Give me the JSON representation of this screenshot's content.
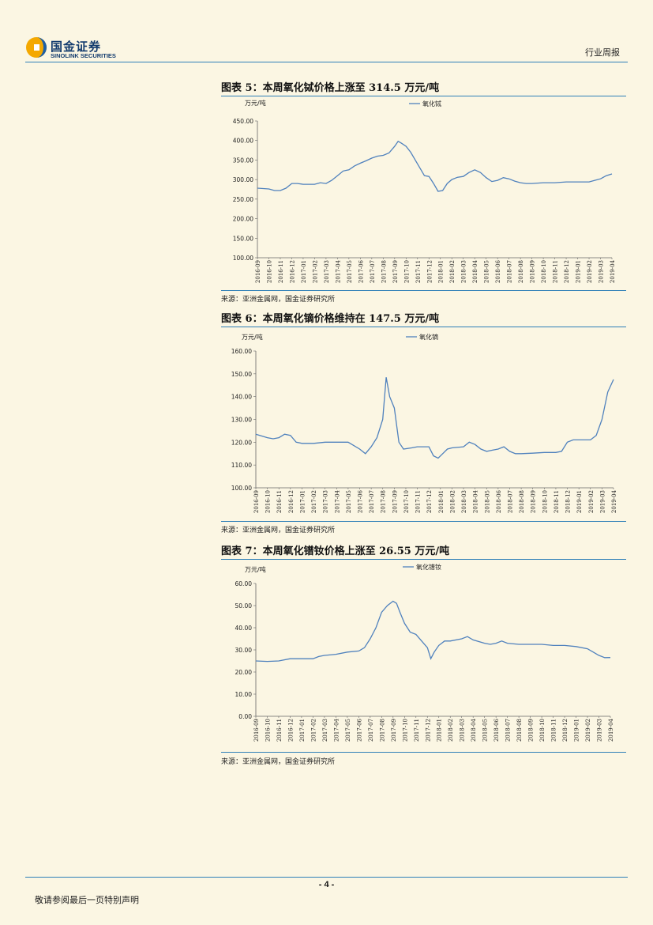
{
  "header": {
    "logo_cn": "国金证券",
    "logo_en": "SINOLINK SECURITIES",
    "report_type": "行业周报"
  },
  "figures": [
    {
      "title": "图表 5：本周氧化铽价格上涨至 314.5 万元/吨",
      "source": "来源：亚洲金属网，国金证券研究所"
    },
    {
      "title": "图表 6：本周氧化镝价格维持在 147.5 万元/吨",
      "source": "来源：亚洲金属网，国金证券研究所"
    },
    {
      "title": "图表 7：本周氧化镨钕价格上涨至 26.55 万元/吨",
      "source": "来源：亚洲金属网，国金证券研究所"
    }
  ],
  "chart_data": [
    {
      "type": "line",
      "unit_label": "万元/吨",
      "ylim": [
        100,
        450
      ],
      "yticks": [
        "100.00",
        "150.00",
        "200.00",
        "250.00",
        "300.00",
        "350.00",
        "400.00",
        "450.00"
      ],
      "categories": [
        "2016-09",
        "2016-10",
        "2016-11",
        "2016-12",
        "2017-01",
        "2017-02",
        "2017-03",
        "2017-04",
        "2017-05",
        "2017-06",
        "2017-07",
        "2017-08",
        "2017-09",
        "2017-10",
        "2017-11",
        "2017-12",
        "2018-01",
        "2018-02",
        "2018-03",
        "2018-04",
        "2018-05",
        "2018-06",
        "2018-07",
        "2018-08",
        "2018-09",
        "2018-10",
        "2018-11",
        "2018-12",
        "2019-01",
        "2019-02",
        "2019-03",
        "2019-04"
      ],
      "series": [
        {
          "name": "氧化铽",
          "color": "#4F81BD",
          "values": [
            [
              0,
              278
            ],
            [
              1,
              276
            ],
            [
              1.5,
              272
            ],
            [
              2,
              272
            ],
            [
              2.5,
              278
            ],
            [
              3,
              290
            ],
            [
              3.5,
              290
            ],
            [
              4,
              288
            ],
            [
              5,
              288
            ],
            [
              5.5,
              292
            ],
            [
              6,
              290
            ],
            [
              6.5,
              298
            ],
            [
              7,
              310
            ],
            [
              7.5,
              322
            ],
            [
              8,
              325
            ],
            [
              8.5,
              335
            ],
            [
              9,
              342
            ],
            [
              9.5,
              348
            ],
            [
              10,
              355
            ],
            [
              10.5,
              360
            ],
            [
              11,
              362
            ],
            [
              11.5,
              368
            ],
            [
              12,
              385
            ],
            [
              12.3,
              398
            ],
            [
              12.6,
              393
            ],
            [
              13,
              385
            ],
            [
              13.4,
              370
            ],
            [
              13.8,
              350
            ],
            [
              14.2,
              330
            ],
            [
              14.6,
              310
            ],
            [
              15,
              308
            ],
            [
              15.4,
              290
            ],
            [
              15.8,
              270
            ],
            [
              16.2,
              272
            ],
            [
              16.6,
              290
            ],
            [
              17,
              300
            ],
            [
              17.5,
              306
            ],
            [
              18,
              308
            ],
            [
              18.5,
              318
            ],
            [
              19,
              325
            ],
            [
              19.5,
              318
            ],
            [
              20,
              305
            ],
            [
              20.5,
              295
            ],
            [
              21,
              298
            ],
            [
              21.5,
              305
            ],
            [
              22,
              302
            ],
            [
              22.5,
              296
            ],
            [
              23,
              292
            ],
            [
              23.5,
              290
            ],
            [
              24,
              290
            ],
            [
              25,
              292
            ],
            [
              26,
              292
            ],
            [
              27,
              294
            ],
            [
              28,
              294
            ],
            [
              29,
              294
            ],
            [
              29.5,
              298
            ],
            [
              30,
              302
            ],
            [
              30.5,
              310
            ],
            [
              31,
              314.5
            ]
          ]
        }
      ]
    },
    {
      "type": "line",
      "unit_label": "万元/吨",
      "ylim": [
        100,
        160
      ],
      "yticks": [
        "100.00",
        "110.00",
        "120.00",
        "130.00",
        "140.00",
        "150.00",
        "160.00"
      ],
      "categories": [
        "2016-09",
        "2016-10",
        "2016-11",
        "2016-12",
        "2017-01",
        "2017-02",
        "2017-03",
        "2017-04",
        "2017-05",
        "2017-06",
        "2017-07",
        "2017-08",
        "2017-09",
        "2017-10",
        "2017-11",
        "2017-12",
        "2018-01",
        "2018-02",
        "2018-03",
        "2018-04",
        "2018-05",
        "2018-06",
        "2018-07",
        "2018-08",
        "2018-09",
        "2018-10",
        "2018-11",
        "2018-12",
        "2019-01",
        "2019-02",
        "2019-03",
        "2019-04"
      ],
      "series": [
        {
          "name": "氧化镝",
          "color": "#4F81BD",
          "values": [
            [
              0,
              123.5
            ],
            [
              1,
              122
            ],
            [
              1.5,
              121.5
            ],
            [
              2,
              122
            ],
            [
              2.5,
              123.5
            ],
            [
              3,
              123
            ],
            [
              3.5,
              120
            ],
            [
              4,
              119.5
            ],
            [
              5,
              119.5
            ],
            [
              6,
              120
            ],
            [
              7,
              120
            ],
            [
              8,
              120
            ],
            [
              9,
              117
            ],
            [
              9.5,
              115
            ],
            [
              10,
              118
            ],
            [
              10.5,
              122
            ],
            [
              11,
              130
            ],
            [
              11.3,
              148.5
            ],
            [
              11.6,
              140
            ],
            [
              12,
              135
            ],
            [
              12.4,
              120
            ],
            [
              12.8,
              117
            ],
            [
              13.5,
              117.5
            ],
            [
              14,
              118
            ],
            [
              15,
              118
            ],
            [
              15.4,
              114
            ],
            [
              15.8,
              113
            ],
            [
              16.2,
              115
            ],
            [
              16.6,
              117
            ],
            [
              17,
              117.5
            ],
            [
              18,
              118
            ],
            [
              18.5,
              120
            ],
            [
              19,
              119
            ],
            [
              19.5,
              117
            ],
            [
              20,
              116
            ],
            [
              20.5,
              116.5
            ],
            [
              21,
              117
            ],
            [
              21.5,
              118
            ],
            [
              22,
              116
            ],
            [
              22.5,
              115
            ],
            [
              23,
              115
            ],
            [
              24,
              115.2
            ],
            [
              25,
              115.5
            ],
            [
              26,
              115.5
            ],
            [
              26.5,
              116
            ],
            [
              27,
              120
            ],
            [
              27.5,
              121
            ],
            [
              28,
              121
            ],
            [
              29,
              121
            ],
            [
              29.5,
              123
            ],
            [
              30,
              130
            ],
            [
              30.5,
              142
            ],
            [
              31,
              147.5
            ]
          ]
        }
      ]
    },
    {
      "type": "line",
      "unit_label": "万元/吨",
      "ylim": [
        0,
        60
      ],
      "yticks": [
        "0.00",
        "10.00",
        "20.00",
        "30.00",
        "40.00",
        "50.00",
        "60.00"
      ],
      "categories": [
        "2016-09",
        "2016-10",
        "2016-11",
        "2016-12",
        "2017-01",
        "2017-02",
        "2017-03",
        "2017-04",
        "2017-05",
        "2017-06",
        "2017-07",
        "2017-08",
        "2017-09",
        "2017-10",
        "2017-11",
        "2017-12",
        "2018-01",
        "2018-02",
        "2018-03",
        "2018-04",
        "2018-05",
        "2018-06",
        "2018-07",
        "2018-08",
        "2018-09",
        "2018-10",
        "2018-11",
        "2018-12",
        "2019-01",
        "2019-02",
        "2019-03",
        "2019-04"
      ],
      "series": [
        {
          "name": "氧化镨钕",
          "color": "#4F81BD",
          "values": [
            [
              0,
              25
            ],
            [
              1,
              24.8
            ],
            [
              2,
              25
            ],
            [
              3,
              26
            ],
            [
              4,
              26
            ],
            [
              5,
              26
            ],
            [
              5.5,
              27
            ],
            [
              6,
              27.5
            ],
            [
              7,
              28
            ],
            [
              8,
              29
            ],
            [
              9,
              29.5
            ],
            [
              9.5,
              31
            ],
            [
              10,
              35
            ],
            [
              10.5,
              40
            ],
            [
              11,
              47
            ],
            [
              11.5,
              50
            ],
            [
              12,
              52
            ],
            [
              12.3,
              51
            ],
            [
              12.6,
              47
            ],
            [
              13,
              42
            ],
            [
              13.5,
              38
            ],
            [
              14,
              37
            ],
            [
              14.5,
              34
            ],
            [
              15,
              31
            ],
            [
              15.3,
              26
            ],
            [
              15.6,
              29
            ],
            [
              16,
              32
            ],
            [
              16.5,
              34
            ],
            [
              17,
              34
            ],
            [
              18,
              35
            ],
            [
              18.5,
              36
            ],
            [
              19,
              34.5
            ],
            [
              20,
              33
            ],
            [
              20.5,
              32.5
            ],
            [
              21,
              33
            ],
            [
              21.5,
              34
            ],
            [
              22,
              33
            ],
            [
              23,
              32.5
            ],
            [
              24,
              32.5
            ],
            [
              25,
              32.5
            ],
            [
              26,
              32
            ],
            [
              27,
              32
            ],
            [
              28,
              31.5
            ],
            [
              29,
              30.5
            ],
            [
              29.5,
              29
            ],
            [
              30,
              27.5
            ],
            [
              30.5,
              26.5
            ],
            [
              31,
              26.55
            ]
          ]
        }
      ]
    }
  ],
  "page_number": "- 4 -",
  "footer_note": "敬请参阅最后一页特别声明"
}
